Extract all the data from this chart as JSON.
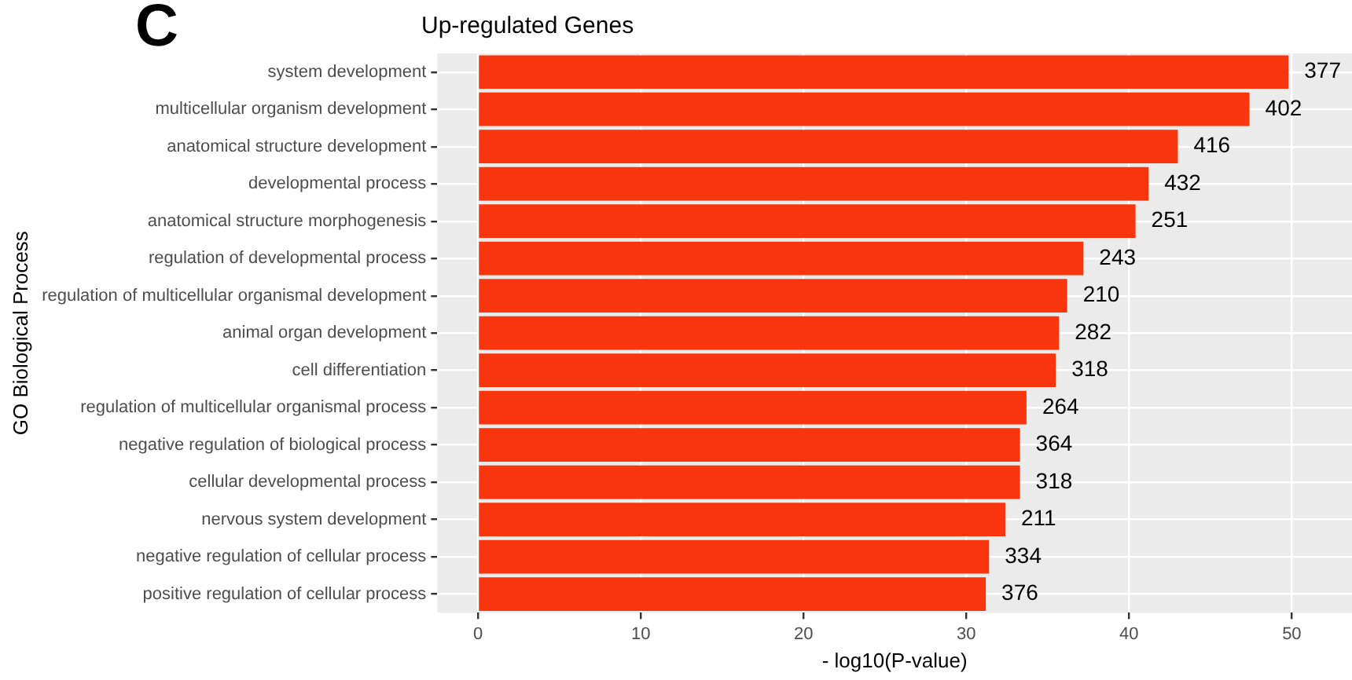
{
  "chart_data": {
    "type": "bar",
    "orientation": "horizontal",
    "title": "Up-regulated Genes",
    "xlabel": "- log10(P-value)",
    "ylabel": "GO Biological Process",
    "annotations": [
      "C",
      {
        "text": "377",
        "x": 49.8,
        "y": "system development"
      },
      {
        "text": "402",
        "x": 47.4,
        "y": "multicellular organism development"
      },
      {
        "text": "416",
        "x": 43.0,
        "y": "anatomical structure development"
      },
      {
        "text": "432",
        "x": 41.2,
        "y": "developmental process"
      },
      {
        "text": "251",
        "x": 40.4,
        "y": "anatomical structure morphogenesis"
      },
      {
        "text": "243",
        "x": 37.2,
        "y": "regulation of developmental process"
      },
      {
        "text": "210",
        "x": 36.2,
        "y": "regulation of multicellular organismal development"
      },
      {
        "text": "282",
        "x": 35.7,
        "y": "animal organ development"
      },
      {
        "text": "318",
        "x": 35.5,
        "y": "cell differentiation"
      },
      {
        "text": "264",
        "x": 33.7,
        "y": "regulation of multicellular organismal process"
      },
      {
        "text": "364",
        "x": 33.3,
        "y": "negative regulation of biological process"
      },
      {
        "text": "318",
        "x": 33.3,
        "y": "cellular developmental process"
      },
      {
        "text": "211",
        "x": 32.4,
        "y": "nervous system development"
      },
      {
        "text": "334",
        "x": 31.4,
        "y": "negative regulation of cellular process"
      },
      {
        "text": "376",
        "x": 31.2,
        "y": "positive regulation of cellular process"
      }
    ],
    "categories": [
      "system development",
      "multicellular organism development",
      "anatomical structure development",
      "developmental process",
      "anatomical structure morphogenesis",
      "regulation of developmental process",
      "regulation of multicellular organismal development",
      "animal organ development",
      "cell differentiation",
      "regulation of multicellular organismal process",
      "negative regulation of biological process",
      "cellular developmental process",
      "nervous system development",
      "negative regulation of cellular process",
      "positive regulation of cellular process"
    ],
    "values": [
      49.8,
      47.4,
      43.0,
      41.2,
      40.4,
      37.2,
      36.2,
      35.7,
      35.5,
      33.7,
      33.3,
      33.3,
      32.4,
      31.4,
      31.2
    ],
    "color": "#f8350d",
    "xlim": [
      -2.5,
      53.7
    ],
    "xticks": [
      0,
      10,
      20,
      30,
      40,
      50
    ],
    "grid": true
  }
}
